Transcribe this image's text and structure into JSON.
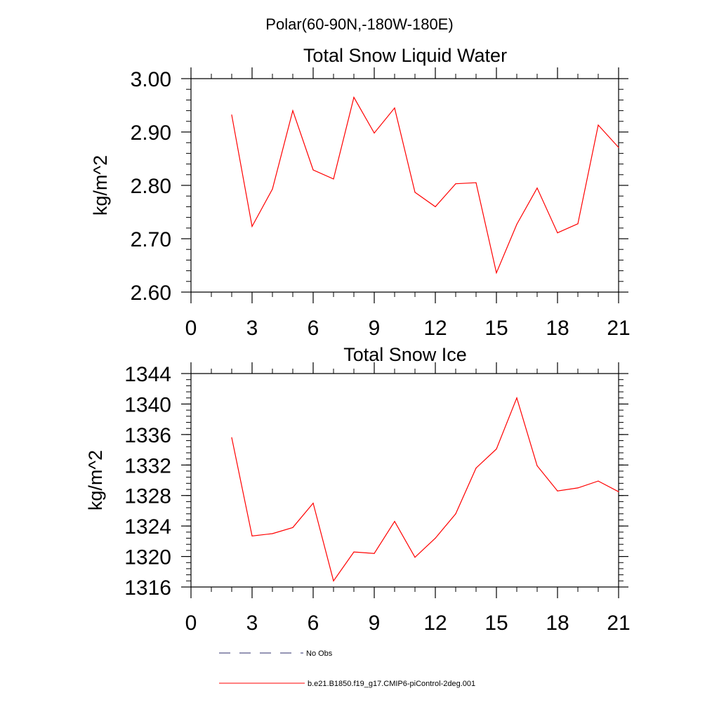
{
  "page_title": "Polar(60-90N,-180W-180E)",
  "colors": {
    "series": "#ff0000",
    "obs": "#2b2b6b",
    "axis": "#000000"
  },
  "legend": [
    {
      "label": "No Obs",
      "style": "dashed",
      "color": "#2b2b6b"
    },
    {
      "label": "b.e21.B1850.f19_g17.CMIP6-piControl-2deg.001",
      "style": "solid",
      "color": "#ff0000"
    }
  ],
  "chart_data": [
    {
      "type": "line",
      "title": "Total Snow Liquid Water",
      "xlabel": "",
      "ylabel": "kg/m^2",
      "xlim": [
        0,
        21
      ],
      "ylim": [
        2.6,
        3.0
      ],
      "xticks": [
        0,
        3,
        6,
        9,
        12,
        15,
        18,
        21
      ],
      "yticks": [
        2.6,
        2.7,
        2.8,
        2.9,
        3.0
      ],
      "ytick_labels": [
        "2.60",
        "2.70",
        "2.80",
        "2.90",
        "3.00"
      ],
      "xminor": 1,
      "yminor": 0.02,
      "series": [
        {
          "name": "b.e21.B1850.f19_g17.CMIP6-piControl-2deg.001",
          "x": [
            2,
            3,
            4,
            5,
            6,
            7,
            8,
            9,
            10,
            11,
            12,
            13,
            14,
            15,
            16,
            17,
            18,
            19,
            20,
            21
          ],
          "values": [
            2.932,
            2.723,
            2.793,
            2.94,
            2.829,
            2.812,
            2.965,
            2.898,
            2.945,
            2.787,
            2.76,
            2.803,
            2.805,
            2.636,
            2.727,
            2.795,
            2.711,
            2.728,
            2.913,
            2.871
          ]
        }
      ]
    },
    {
      "type": "line",
      "title": "Total Snow Ice",
      "xlabel": "",
      "ylabel": "kg/m^2",
      "xlim": [
        0,
        21
      ],
      "ylim": [
        1316,
        1344
      ],
      "xticks": [
        0,
        3,
        6,
        9,
        12,
        15,
        18,
        21
      ],
      "yticks": [
        1316,
        1320,
        1324,
        1328,
        1332,
        1336,
        1340,
        1344
      ],
      "ytick_labels": [
        "1316",
        "1320",
        "1324",
        "1328",
        "1332",
        "1336",
        "1340",
        "1344"
      ],
      "xminor": 1,
      "yminor": 0.8,
      "series": [
        {
          "name": "b.e21.B1850.f19_g17.CMIP6-piControl-2deg.001",
          "x": [
            2,
            3,
            4,
            5,
            6,
            7,
            8,
            9,
            10,
            11,
            12,
            13,
            14,
            15,
            16,
            17,
            18,
            19,
            20,
            21
          ],
          "values": [
            1335.6,
            1322.7,
            1323.0,
            1323.8,
            1327.0,
            1316.8,
            1320.6,
            1320.4,
            1324.6,
            1319.9,
            1322.4,
            1325.6,
            1331.6,
            1334.1,
            1340.8,
            1331.9,
            1328.6,
            1329.0,
            1329.9,
            1328.5
          ]
        }
      ]
    }
  ]
}
